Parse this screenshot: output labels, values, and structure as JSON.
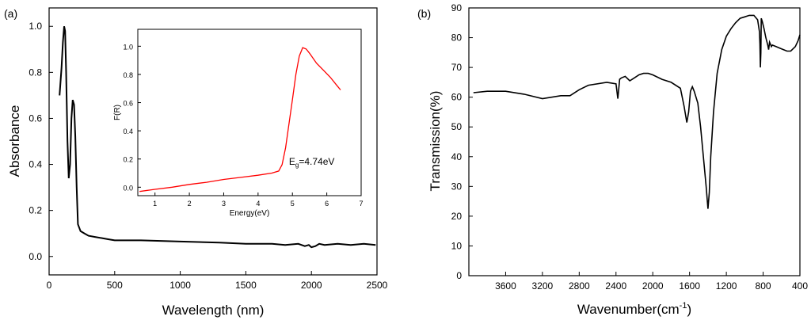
{
  "chart_data": [
    {
      "panel_label": "(a)",
      "type": "line",
      "xlabel": "Wavelength (nm)",
      "ylabel": "Absorbance",
      "xlim": [
        0,
        2500
      ],
      "ylim": [
        -0.08,
        1.08
      ],
      "xticks": [
        "0",
        "500",
        "1000",
        "1500",
        "2000",
        "2500"
      ],
      "yticks": [
        "0.0",
        "0.2",
        "0.4",
        "0.6",
        "0.8",
        "1.0"
      ],
      "line_color": "#000000",
      "series": [
        {
          "name": "Absorbance",
          "x": [
            80,
            95,
            105,
            115,
            122,
            130,
            140,
            150,
            160,
            170,
            180,
            190,
            200,
            210,
            220,
            240,
            270,
            300,
            350,
            400,
            450,
            500,
            700,
            1000,
            1300,
            1500,
            1700,
            1800,
            1900,
            1950,
            1980,
            2000,
            2030,
            2060,
            2100,
            2200,
            2300,
            2400,
            2490
          ],
          "y": [
            0.7,
            0.82,
            0.93,
            1.0,
            0.98,
            0.8,
            0.5,
            0.34,
            0.4,
            0.6,
            0.68,
            0.66,
            0.52,
            0.3,
            0.14,
            0.11,
            0.1,
            0.09,
            0.085,
            0.08,
            0.075,
            0.07,
            0.07,
            0.065,
            0.06,
            0.055,
            0.055,
            0.05,
            0.055,
            0.045,
            0.05,
            0.04,
            0.045,
            0.055,
            0.05,
            0.055,
            0.05,
            0.055,
            0.05
          ]
        }
      ]
    },
    {
      "panel_label": "",
      "type": "line",
      "role": "inset",
      "xlabel": "Energy(eV)",
      "ylabel": "F(R)",
      "xlim": [
        0.5,
        7
      ],
      "ylim": [
        -0.06,
        1.12
      ],
      "xticks": [
        "1",
        "2",
        "3",
        "4",
        "5",
        "6",
        "7"
      ],
      "yticks": [
        "0.0",
        "0.2",
        "0.4",
        "0.6",
        "0.8",
        "1.0"
      ],
      "line_color": "#ff0000",
      "annotation": {
        "text_main": "E",
        "text_sub": "g",
        "text_value": "=4.74eV",
        "x": 4.9,
        "y": 0.16
      },
      "series": [
        {
          "name": "F(R)",
          "x": [
            0.55,
            1.0,
            1.5,
            2.0,
            2.5,
            3.0,
            3.5,
            4.0,
            4.4,
            4.6,
            4.7,
            4.8,
            4.9,
            5.0,
            5.1,
            5.2,
            5.3,
            5.4,
            5.5,
            5.7,
            5.9,
            6.1,
            6.3,
            6.4
          ],
          "y": [
            -0.03,
            -0.015,
            0.0,
            0.02,
            0.035,
            0.055,
            0.07,
            0.085,
            0.1,
            0.115,
            0.16,
            0.28,
            0.45,
            0.62,
            0.8,
            0.93,
            0.99,
            0.98,
            0.95,
            0.88,
            0.83,
            0.78,
            0.72,
            0.69
          ]
        }
      ]
    },
    {
      "panel_label": "(b)",
      "type": "line",
      "xlabel": "Wavenumber(cm",
      "xlabel_sup": "-1",
      "xlabel_end": ")",
      "ylabel": "Transmission(%)",
      "xlim": [
        4000,
        400
      ],
      "ylim": [
        0,
        90
      ],
      "xticks": [
        "3600",
        "3200",
        "2800",
        "2400",
        "2000",
        "1600",
        "1200",
        "800",
        "400"
      ],
      "yticks": [
        "0",
        "10",
        "20",
        "30",
        "40",
        "50",
        "60",
        "70",
        "80",
        "90"
      ],
      "line_color": "#000000",
      "series": [
        {
          "name": "Transmission",
          "x": [
            3950,
            3800,
            3600,
            3400,
            3200,
            3000,
            2900,
            2800,
            2700,
            2500,
            2400,
            2380,
            2360,
            2340,
            2300,
            2250,
            2200,
            2150,
            2100,
            2050,
            2000,
            1900,
            1800,
            1700,
            1660,
            1630,
            1610,
            1590,
            1570,
            1550,
            1510,
            1480,
            1450,
            1420,
            1400,
            1385,
            1370,
            1340,
            1300,
            1250,
            1200,
            1150,
            1100,
            1050,
            1000,
            950,
            900,
            860,
            840,
            835,
            830,
            825,
            820,
            810,
            790,
            770,
            750,
            740,
            730,
            710,
            700,
            660,
            620,
            580,
            540,
            500,
            450,
            420,
            400
          ],
          "y": [
            61.5,
            62,
            62,
            61,
            59.5,
            60.5,
            60.5,
            62.5,
            64,
            65,
            64.5,
            59.5,
            66,
            66.5,
            67,
            65.5,
            66.5,
            67.5,
            68,
            68,
            67.5,
            66,
            65,
            63,
            57,
            51.5,
            55,
            62,
            63.5,
            62,
            58,
            50,
            40,
            30,
            22.5,
            28,
            40,
            55,
            68,
            76,
            80.5,
            83,
            85,
            86.5,
            87,
            87.5,
            87.5,
            86,
            82,
            78,
            70,
            75,
            86.5,
            85.5,
            83,
            80,
            77.5,
            76,
            78.5,
            77,
            77.5,
            77,
            76.5,
            76,
            75.5,
            75.5,
            77,
            79,
            81
          ]
        }
      ]
    }
  ]
}
